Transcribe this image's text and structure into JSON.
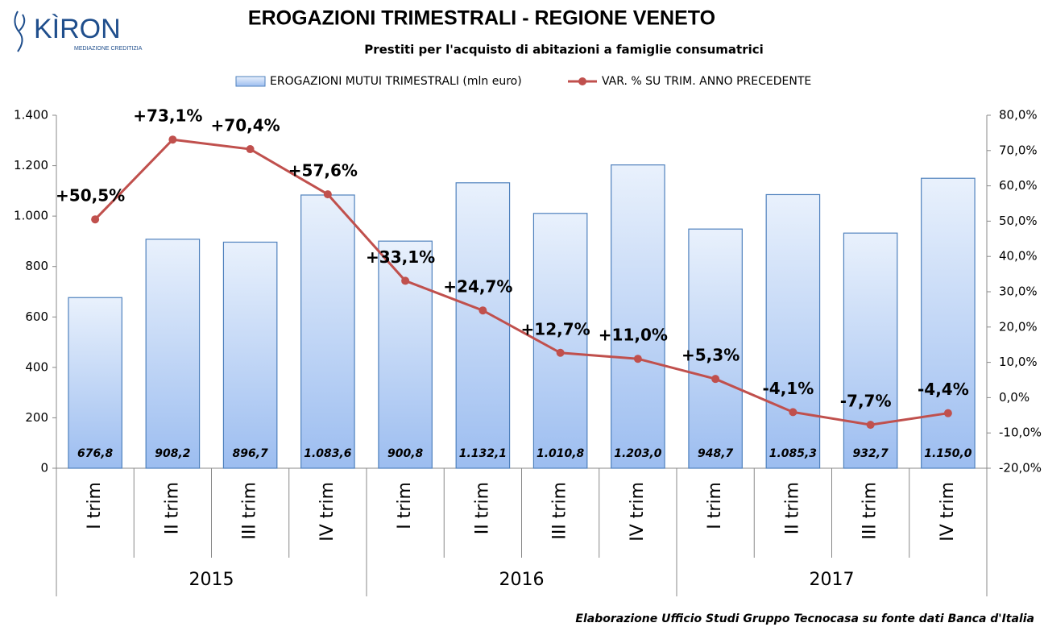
{
  "logo": {
    "text": "KÌRON",
    "tagline": "MEDIAZIONE CREDITIZIA"
  },
  "chart_data": {
    "type": "bar",
    "title": "EROGAZIONI TRIMESTRALI - REGIONE VENETO",
    "subtitle": "Prestiti per l'acquisto di abitazioni a famiglie consumatrici",
    "source": "Elaborazione  Ufficio Studi Gruppo Tecnocasa su fonte dati Banca d'Italia",
    "categories": [
      "I trim",
      "II trim",
      "III trim",
      "IV trim",
      "I trim",
      "II trim",
      "III trim",
      "IV trim",
      "I trim",
      "II trim",
      "III trim",
      "IV trim"
    ],
    "groups": [
      "2015",
      "2016",
      "2017"
    ],
    "series": [
      {
        "name": "EROGAZIONI MUTUI TRIMESTRALI (mln euro)",
        "type": "bar",
        "color": "#4f81bd",
        "values": [
          676.8,
          908.2,
          896.7,
          1083.6,
          900.8,
          1132.1,
          1010.8,
          1203.0,
          948.7,
          1085.3,
          932.7,
          1150.0
        ],
        "value_labels": [
          "676,8",
          "908,2",
          "896,7",
          "1.083,6",
          "900,8",
          "1.132,1",
          "1.010,8",
          "1.203,0",
          "948,7",
          "1.085,3",
          "932,7",
          "1.150,0"
        ]
      },
      {
        "name": "VAR. % SU TRIM. ANNO PRECEDENTE",
        "type": "line",
        "axis": "y2",
        "color": "#c0504d",
        "values": [
          50.5,
          73.1,
          70.4,
          57.6,
          33.1,
          24.7,
          12.7,
          11.0,
          5.3,
          -4.1,
          -7.7,
          -4.4
        ],
        "value_labels": [
          "+50,5%",
          "+73,1%",
          "+70,4%",
          "+57,6%",
          "+33,1%",
          "+24,7%",
          "+12,7%",
          "+11,0%",
          "+5,3%",
          "-4,1%",
          "-7,7%",
          "-4,4%"
        ]
      }
    ],
    "ylim": [
      0,
      1400
    ],
    "yticks": [
      0,
      200,
      400,
      600,
      800,
      {
        "value": 1000,
        "label": "1.000"
      },
      {
        "value": 1200,
        "label": "1.200"
      },
      {
        "value": 1400,
        "label": "1.400"
      }
    ],
    "y2lim": [
      -20,
      80
    ],
    "y2ticks": [
      {
        "value": -20,
        "label": "-20,0%"
      },
      {
        "value": -10,
        "label": "-10,0%"
      },
      {
        "value": 0,
        "label": "0,0%"
      },
      {
        "value": 10,
        "label": "10,0%"
      },
      {
        "value": 20,
        "label": "20,0%"
      },
      {
        "value": 30,
        "label": "30,0%"
      },
      {
        "value": 40,
        "label": "40,0%"
      },
      {
        "value": 50,
        "label": "50,0%"
      },
      {
        "value": 60,
        "label": "60,0%"
      },
      {
        "value": 70,
        "label": "70,0%"
      },
      {
        "value": 80,
        "label": "80,0%"
      }
    ],
    "legend": "top"
  }
}
